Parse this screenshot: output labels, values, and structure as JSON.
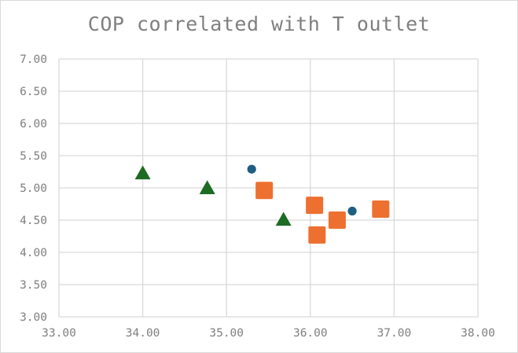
{
  "chart_data": {
    "type": "scatter",
    "title": "COP correlated with T outlet",
    "xlabel": "",
    "ylabel": "",
    "xlim": [
      33.0,
      38.0
    ],
    "ylim": [
      3.0,
      7.0
    ],
    "xticks": [
      "33.00",
      "34.00",
      "35.00",
      "36.00",
      "37.00",
      "38.00"
    ],
    "yticks": [
      "3.00",
      "3.50",
      "4.00",
      "4.50",
      "5.00",
      "5.50",
      "6.00",
      "6.50",
      "7.00"
    ],
    "grid": true,
    "legend": "none",
    "series": [
      {
        "marker": "circle",
        "color": "#1f5f82",
        "points": [
          [
            35.3,
            5.29
          ],
          [
            36.08,
            4.27
          ],
          [
            36.36,
            4.5
          ],
          [
            36.5,
            4.64
          ],
          [
            36.85,
            4.68
          ]
        ]
      },
      {
        "marker": "square",
        "color": "#ed7030",
        "points": [
          [
            35.45,
            4.96
          ],
          [
            36.05,
            4.73
          ],
          [
            36.08,
            4.27
          ],
          [
            36.32,
            4.5
          ],
          [
            36.84,
            4.67
          ]
        ]
      },
      {
        "marker": "triangle",
        "color": "#1e6b24",
        "points": [
          [
            34.0,
            5.22
          ],
          [
            34.77,
            4.99
          ],
          [
            35.68,
            4.5
          ]
        ]
      }
    ]
  }
}
